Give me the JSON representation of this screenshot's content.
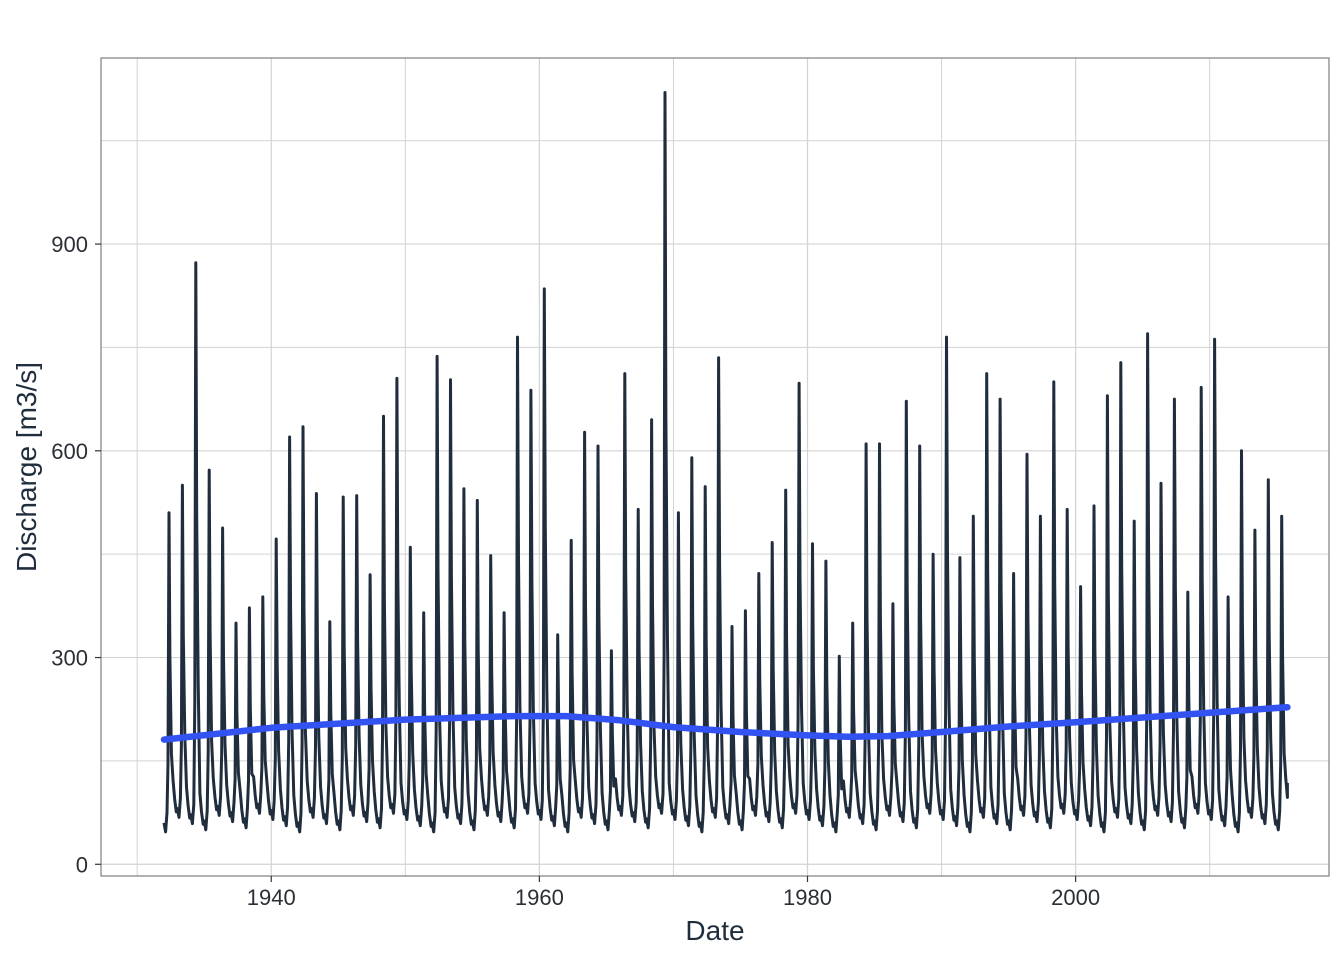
{
  "chart_data": {
    "type": "line",
    "title": "",
    "xlabel": "Date",
    "ylabel": "Discharge [m3/s]",
    "x_unit": "year",
    "xlim": [
      1927.3,
      2018.9
    ],
    "ylim": [
      -17,
      1170
    ],
    "x_ticks": [
      1940,
      1960,
      1980,
      2000
    ],
    "x_tick_labels": [
      "1940",
      "1960",
      "1980",
      "2000"
    ],
    "y_ticks": [
      0,
      300,
      600,
      900
    ],
    "y_tick_labels": [
      "0",
      "300",
      "600",
      "900"
    ],
    "y_minor_ticks": [
      150,
      450,
      750,
      1050
    ],
    "x_minor_ticks": [
      1930,
      1950,
      1970,
      1990,
      2010
    ],
    "grid": true,
    "legend": "none",
    "colors": {
      "series": "#1f2d3d",
      "trend": "#3352f2",
      "grid": "#d3d3d3",
      "panel_border": "#7f7f7f"
    },
    "series": [
      {
        "style": "line",
        "annual_peaks": {
          "year": [
            1932,
            1933,
            1934,
            1935,
            1936,
            1937,
            1938,
            1939,
            1940,
            1941,
            1942,
            1943,
            1944,
            1945,
            1946,
            1947,
            1948,
            1949,
            1950,
            1951,
            1952,
            1953,
            1954,
            1955,
            1956,
            1957,
            1958,
            1959,
            1960,
            1961,
            1962,
            1963,
            1964,
            1965,
            1966,
            1967,
            1968,
            1969,
            1970,
            1971,
            1972,
            1973,
            1974,
            1975,
            1976,
            1977,
            1978,
            1979,
            1980,
            1981,
            1982,
            1983,
            1984,
            1985,
            1986,
            1987,
            1988,
            1989,
            1990,
            1991,
            1992,
            1993,
            1994,
            1995,
            1996,
            1997,
            1998,
            1999,
            2000,
            2001,
            2002,
            2003,
            2004,
            2005,
            2006,
            2007,
            2008,
            2009,
            2010,
            2011,
            2012,
            2013,
            2014,
            2015
          ],
          "peak": [
            510,
            550,
            873,
            572,
            488,
            350,
            372,
            388,
            472,
            620,
            635,
            538,
            352,
            533,
            535,
            420,
            650,
            705,
            460,
            365,
            737,
            703,
            545,
            528,
            448,
            365,
            765,
            688,
            835,
            333,
            470,
            627,
            607,
            310,
            712,
            515,
            645,
            1120,
            510,
            590,
            548,
            735,
            345,
            368,
            422,
            467,
            543,
            698,
            465,
            440,
            302,
            350,
            610,
            610,
            378,
            672,
            607,
            450,
            765,
            445,
            505,
            712,
            675,
            422,
            595,
            505,
            700,
            515,
            403,
            520,
            680,
            728,
            498,
            770,
            553,
            675,
            395,
            692,
            762,
            388,
            600,
            485,
            558,
            505
          ]
        },
        "trough_range": [
          45,
          75
        ],
        "peak_month": "May",
        "x_range": [
          1932.0,
          2015.8
        ]
      },
      {
        "style": "smooth-trend",
        "x": [
          1932,
          1940,
          1950,
          1958,
          1962,
          1966,
          1970,
          1975,
          1980,
          1983,
          1986,
          1990,
          1995,
          2000,
          2005,
          2010,
          2015.8
        ],
        "y": [
          181,
          198,
          210,
          215,
          215,
          209,
          199,
          192,
          187,
          185,
          186,
          192,
          200,
          206,
          213,
          220,
          228
        ]
      }
    ]
  }
}
